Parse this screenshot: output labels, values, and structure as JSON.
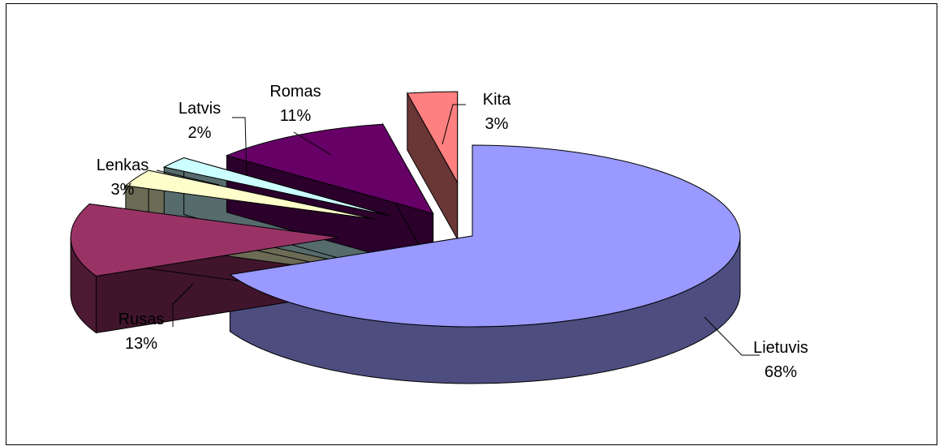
{
  "chart_data": {
    "type": "pie",
    "style": "3d-exploded",
    "legend": "none",
    "slices": [
      {
        "name": "Lietuvis",
        "value": 68,
        "label": "68%",
        "color": "#9999FF"
      },
      {
        "name": "Rusas",
        "value": 13,
        "label": "13%",
        "color": "#993366"
      },
      {
        "name": "Lenkas",
        "value": 3,
        "label": "3%",
        "color": "#FFFFCC"
      },
      {
        "name": "Latvis",
        "value": 2,
        "label": "2%",
        "color": "#CCFFFF"
      },
      {
        "name": "Romas",
        "value": 11,
        "label": "11%",
        "color": "#660066"
      },
      {
        "name": "Kita",
        "value": 3,
        "label": "3%",
        "color": "#FF8080"
      }
    ]
  }
}
